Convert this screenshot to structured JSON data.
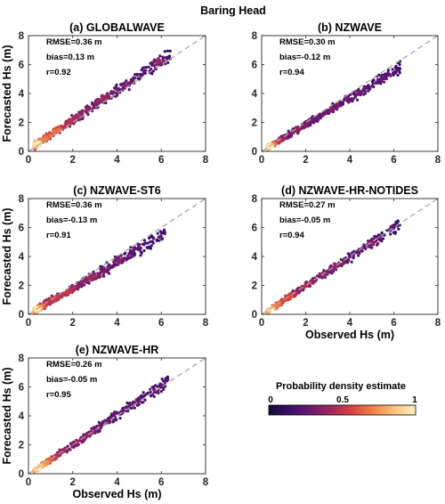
{
  "figure_title": "Baring Head",
  "xlabel": "Observed Hs (m)",
  "ylabel": "Forecasted Hs (m)",
  "colorbar": {
    "label": "Probability density estimate",
    "ticks": [
      "0",
      "0.5",
      "1"
    ],
    "colors": [
      "#140b34",
      "#3b0f6f",
      "#6b186e",
      "#a1295c",
      "#d8453f",
      "#f1834a",
      "#fbc27b",
      "#fcf0c0"
    ]
  },
  "chart_data": [
    {
      "type": "scatter",
      "title": "(a) GLOBALWAVE",
      "xlim": [
        0,
        8
      ],
      "ylim": [
        0,
        8
      ],
      "xticks": [
        "0",
        "2",
        "4",
        "6",
        "8"
      ],
      "yticks": [
        "0",
        "2",
        "4",
        "6",
        "8"
      ],
      "stats": [
        "RMSE=0.36 m",
        "bias=0.13 m",
        "r=0.92"
      ],
      "shape": {
        "slope": 1.02,
        "offset": 0.13,
        "spread": 0.32,
        "xmax": 6.4,
        "seed": 11
      },
      "xlabel": "",
      "ylabel": "Forecasted Hs (m)"
    },
    {
      "type": "scatter",
      "title": "(b) NZWAVE",
      "xlim": [
        0,
        8
      ],
      "ylim": [
        0,
        8
      ],
      "xticks": [
        "0",
        "2",
        "4",
        "6",
        "8"
      ],
      "yticks": [
        "0",
        "2",
        "4",
        "6",
        "8"
      ],
      "stats": [
        "RMSE=0.30 m",
        "bias=-0.12 m",
        "r=0.94"
      ],
      "shape": {
        "slope": 0.92,
        "offset": 0.0,
        "spread": 0.27,
        "xmax": 6.3,
        "seed": 23
      },
      "xlabel": "",
      "ylabel": ""
    },
    {
      "type": "scatter",
      "title": "(c) NZWAVE-ST6",
      "xlim": [
        0,
        8
      ],
      "ylim": [
        0,
        8
      ],
      "xticks": [
        "0",
        "2",
        "4",
        "6",
        "8"
      ],
      "yticks": [
        "0",
        "2",
        "4",
        "6",
        "8"
      ],
      "stats": [
        "RMSE=0.36 m",
        "bias=-0.13 m",
        "r=0.91"
      ],
      "shape": {
        "slope": 0.9,
        "offset": 0.0,
        "spread": 0.33,
        "xmax": 6.3,
        "seed": 37
      },
      "xlabel": "",
      "ylabel": "Forecasted Hs (m)"
    },
    {
      "type": "scatter",
      "title": "(d) NZWAVE-HR-NOTIDES",
      "xlim": [
        0,
        8
      ],
      "ylim": [
        0,
        8
      ],
      "xticks": [
        "0",
        "2",
        "4",
        "6",
        "8"
      ],
      "yticks": [
        "0",
        "2",
        "4",
        "6",
        "8"
      ],
      "stats": [
        "RMSE=0.27 m",
        "bias=-0.05 m",
        "r=0.94"
      ],
      "shape": {
        "slope": 1.0,
        "offset": -0.05,
        "spread": 0.26,
        "xmax": 6.3,
        "seed": 53
      },
      "xlabel": "Observed Hs (m)",
      "ylabel": ""
    },
    {
      "type": "scatter",
      "title": "(e) NZWAVE-HR",
      "xlim": [
        0,
        8
      ],
      "ylim": [
        0,
        8
      ],
      "xticks": [
        "0",
        "2",
        "4",
        "6",
        "8"
      ],
      "yticks": [
        "0",
        "2",
        "4",
        "6",
        "8"
      ],
      "stats": [
        "RMSE=0.26 m",
        "bias=-0.05 m",
        "r=0.95"
      ],
      "shape": {
        "slope": 1.02,
        "offset": -0.05,
        "spread": 0.25,
        "xmax": 6.3,
        "seed": 71
      },
      "xlabel": "Observed Hs (m)",
      "ylabel": "Forecasted Hs (m)"
    }
  ]
}
